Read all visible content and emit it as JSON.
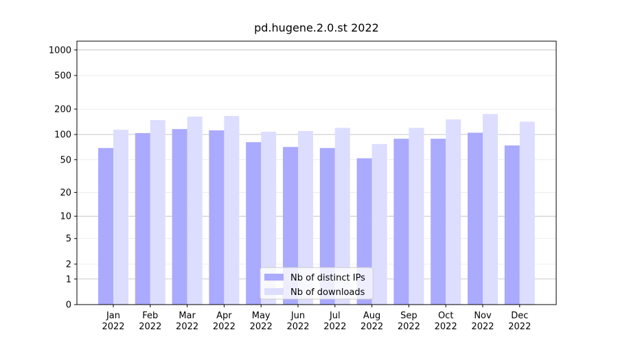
{
  "chart_data": {
    "type": "bar",
    "title": "pd.hugene.2.0.st 2022",
    "categories": [
      "Jan\n2022",
      "Feb\n2022",
      "Mar\n2022",
      "Apr\n2022",
      "May\n2022",
      "Jun\n2022",
      "Jul\n2022",
      "Aug\n2022",
      "Sep\n2022",
      "Oct\n2022",
      "Nov\n2022",
      "Dec\n2022"
    ],
    "series": [
      {
        "name": "Nb of distinct IPs",
        "color": "#aaaaff",
        "values": [
          69,
          104,
          116,
          112,
          81,
          71,
          69,
          52,
          89,
          89,
          105,
          74
        ]
      },
      {
        "name": "Nb of downloads",
        "color": "#ddddff",
        "values": [
          114,
          148,
          163,
          166,
          108,
          110,
          120,
          77,
          120,
          151,
          175,
          142
        ]
      }
    ],
    "yscale": "log1p",
    "ylim": [
      0,
      1270
    ],
    "yticks": [
      0,
      1,
      2,
      5,
      10,
      20,
      50,
      100,
      200,
      500,
      1000
    ],
    "grid": true,
    "legend": "lower center"
  }
}
